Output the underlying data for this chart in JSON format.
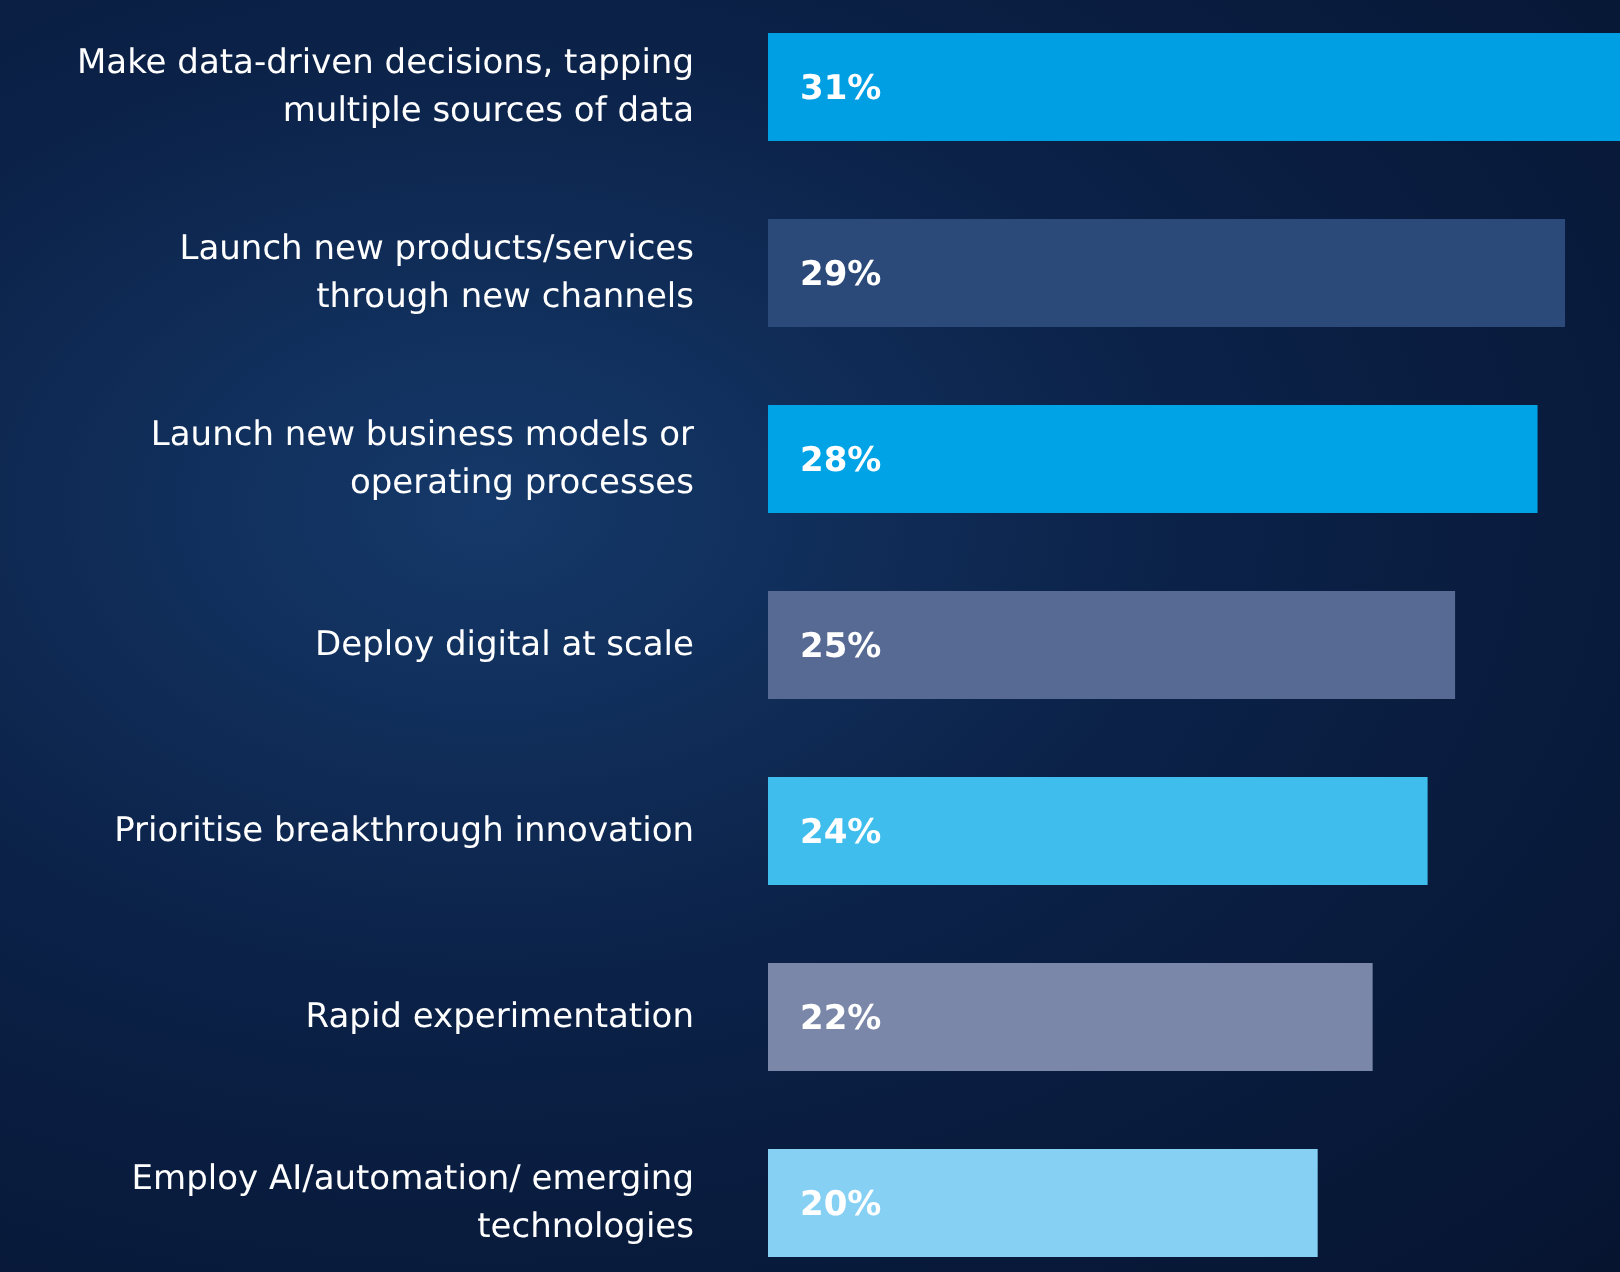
{
  "chart_data": {
    "type": "bar",
    "orientation": "horizontal",
    "categories": [
      "Make data-driven decisions, tapping multiple sources of data",
      "Launch new products/services through new channels",
      "Launch new business models or operating processes",
      "Deploy digital at scale",
      "Prioritise breakthrough innovation",
      "Rapid experimentation",
      "Employ AI/automation/ emerging technologies"
    ],
    "values": [
      31,
      29,
      28,
      25,
      24,
      22,
      20
    ],
    "value_labels": [
      "31%",
      "29%",
      "28%",
      "25%",
      "24%",
      "22%",
      "20%"
    ],
    "colors": [
      "#009fe3",
      "#2b4a7a",
      "#00a3e6",
      "#566a93",
      "#3fbdec",
      "#7a87a8",
      "#86d0f4"
    ],
    "xlim": [
      0,
      31
    ]
  }
}
